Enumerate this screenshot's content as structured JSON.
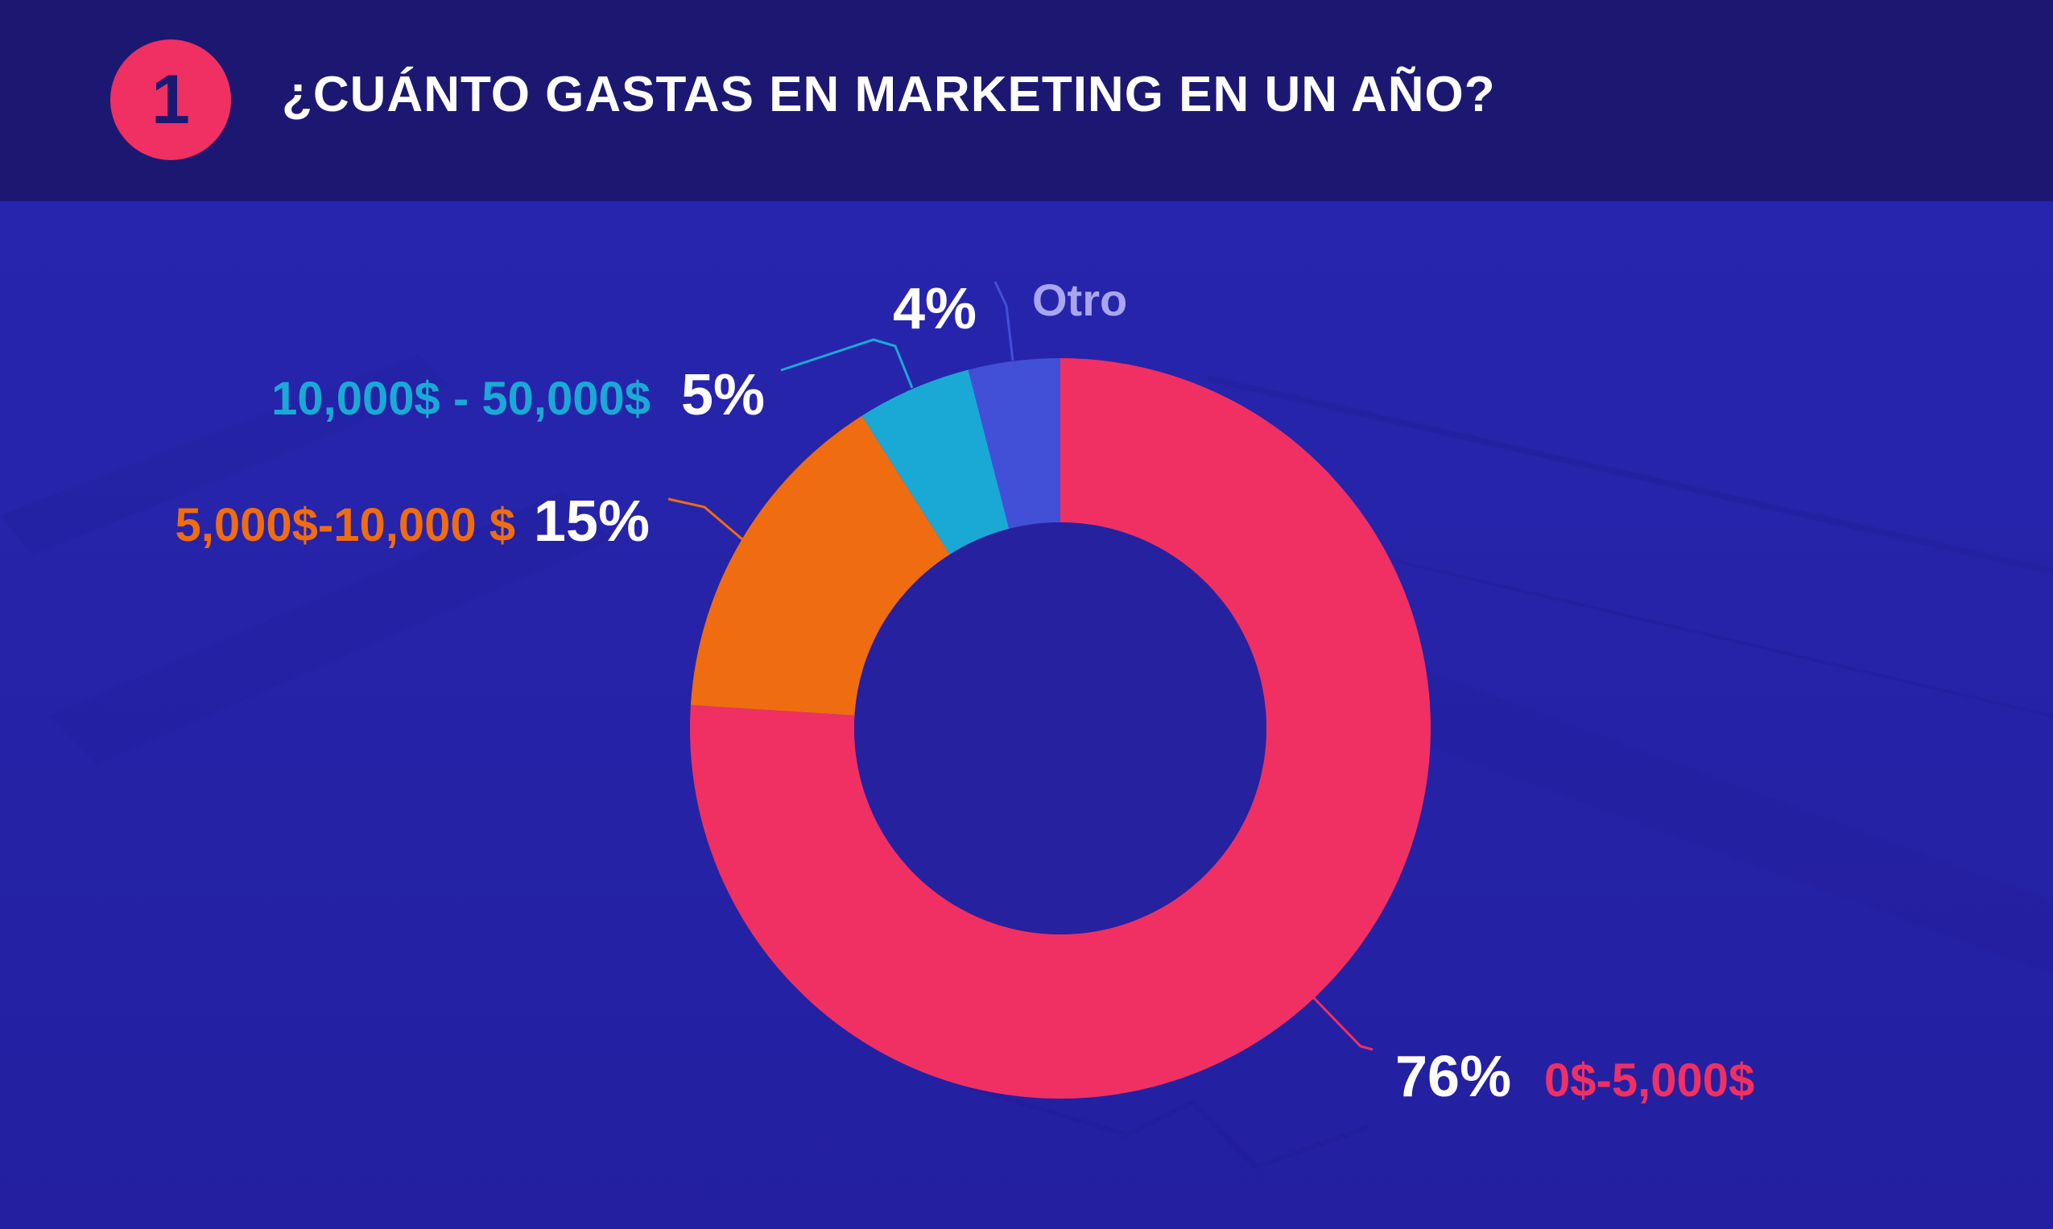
{
  "header": {
    "step_number": "1",
    "title": "¿CUÁNTO GASTAS EN MARKETING EN UN AÑO?"
  },
  "colors": {
    "header_bg": "#1c1872",
    "background": "#2623a8",
    "badge": "#f03062"
  },
  "chart_data": {
    "type": "pie",
    "donut": true,
    "start": "top",
    "direction": "clockwise",
    "slices": [
      {
        "label": "0$-5,000$",
        "value": 76,
        "value_label": "76%",
        "color": "#f03062"
      },
      {
        "label": "5,000$-10,000 $",
        "value": 15,
        "value_label": "15%",
        "color": "#ef6c11"
      },
      {
        "label": "10,000$ - 50,000$",
        "value": 5,
        "value_label": "5%",
        "color": "#1aa9d5"
      },
      {
        "label": "Otro",
        "value": 4,
        "value_label": "4%",
        "color": "#4250d8"
      }
    ],
    "category_label_colors": [
      "#f03062",
      "#ef6c11",
      "#1aa9d5",
      "#a9a6f0"
    ]
  }
}
